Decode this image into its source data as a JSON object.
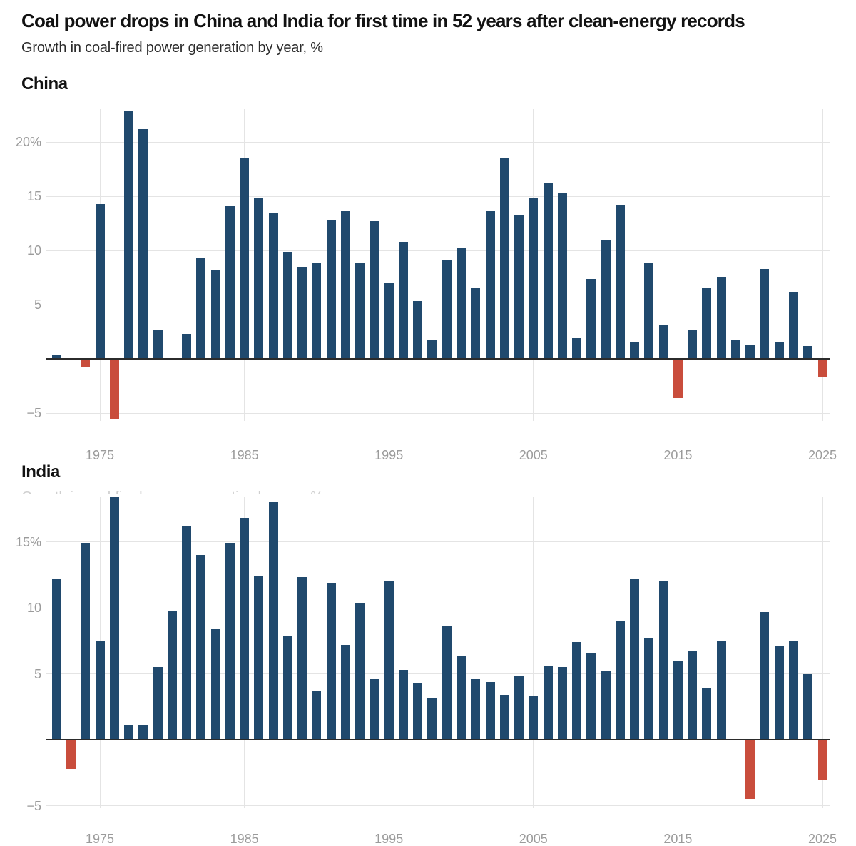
{
  "header": {
    "title": "Coal power drops in China and India for first time in 52 years after clean-energy records",
    "subtitle": "Growth in coal-fired power generation by year, %"
  },
  "artifact": {
    "clipped_subtitle": "Growth in coal-fired power generation by year, %"
  },
  "colors": {
    "bar_positive": "#20496D",
    "bar_negative": "#C94D3C",
    "gridline": "#E4E4E4",
    "axis_line": "#2B2B2B",
    "tick_label": "#9B9B9B"
  },
  "chart_data": [
    {
      "type": "bar",
      "section_label": "China",
      "title": "Coal power drops in China and India for first time in 52 years after clean-energy records",
      "xlabel": "",
      "ylabel": "Growth in coal-fired power generation by year, %",
      "ylim": [
        -6.6,
        23.6
      ],
      "grid": true,
      "legend": "none",
      "x_ticks": [
        "1975",
        "1985",
        "1995",
        "2005",
        "2015",
        "2025"
      ],
      "y_ticks": [
        {
          "value": 20,
          "label": "20%"
        },
        {
          "value": 15,
          "label": "15"
        },
        {
          "value": 10,
          "label": "10"
        },
        {
          "value": 5,
          "label": "5"
        },
        {
          "value": -5,
          "label": "−5"
        }
      ],
      "years": [
        1972,
        1973,
        1974,
        1975,
        1976,
        1977,
        1978,
        1979,
        1980,
        1981,
        1982,
        1983,
        1984,
        1985,
        1986,
        1987,
        1988,
        1989,
        1990,
        1991,
        1992,
        1993,
        1994,
        1995,
        1996,
        1997,
        1998,
        1999,
        2000,
        2001,
        2002,
        2003,
        2004,
        2005,
        2006,
        2007,
        2008,
        2009,
        2010,
        2011,
        2012,
        2013,
        2014,
        2015,
        2016,
        2017,
        2018,
        2019,
        2020,
        2021,
        2022,
        2023,
        2024,
        2025
      ],
      "values": [
        0.4,
        0,
        -0.7,
        14.3,
        -5.6,
        22.8,
        21.2,
        2.6,
        0,
        2.3,
        9.3,
        8.2,
        14.1,
        18.5,
        14.9,
        13.4,
        9.9,
        8.4,
        8.9,
        12.8,
        13.6,
        8.9,
        12.7,
        7.0,
        10.8,
        5.3,
        1.8,
        9.1,
        10.2,
        6.5,
        13.6,
        18.5,
        13.3,
        14.9,
        16.2,
        15.3,
        1.9,
        7.4,
        11.0,
        14.2,
        1.6,
        8.8,
        3.1,
        -3.6,
        2.6,
        6.5,
        7.5,
        1.8,
        1.3,
        8.3,
        1.5,
        6.2,
        1.2,
        -1.7
      ]
    },
    {
      "type": "bar",
      "section_label": "India",
      "title": "Coal power drops in China and India for first time in 52 years after clean-energy records",
      "xlabel": "",
      "ylabel": "Growth in coal-fired power generation by year, %",
      "ylim": [
        -5.4,
        18.6
      ],
      "grid": true,
      "legend": "none",
      "x_ticks": [
        "1975",
        "1985",
        "1995",
        "2005",
        "2015",
        "2025"
      ],
      "y_ticks": [
        {
          "value": 15,
          "label": "15%"
        },
        {
          "value": 10,
          "label": "10"
        },
        {
          "value": 5,
          "label": "5"
        },
        {
          "value": -5,
          "label": "−5"
        }
      ],
      "years": [
        1972,
        1973,
        1974,
        1975,
        1976,
        1977,
        1978,
        1979,
        1980,
        1981,
        1982,
        1983,
        1984,
        1985,
        1986,
        1987,
        1988,
        1989,
        1990,
        1991,
        1992,
        1993,
        1994,
        1995,
        1996,
        1997,
        1998,
        1999,
        2000,
        2001,
        2002,
        2003,
        2004,
        2005,
        2006,
        2007,
        2008,
        2009,
        2010,
        2011,
        2012,
        2013,
        2014,
        2015,
        2016,
        2017,
        2018,
        2019,
        2020,
        2021,
        2022,
        2023,
        2024,
        2025
      ],
      "values": [
        12.2,
        -2.2,
        14.9,
        7.5,
        18.4,
        1.1,
        1.1,
        5.5,
        9.8,
        16.2,
        14.0,
        8.4,
        14.9,
        16.8,
        12.4,
        18.0,
        7.9,
        12.3,
        3.7,
        11.9,
        7.2,
        10.4,
        4.6,
        12.0,
        5.3,
        4.3,
        3.2,
        8.6,
        6.3,
        4.6,
        4.4,
        3.4,
        4.8,
        3.3,
        5.6,
        5.5,
        7.4,
        6.6,
        5.2,
        9.0,
        12.2,
        7.7,
        12.0,
        6.0,
        6.7,
        3.9,
        7.5,
        0,
        -4.5,
        9.7,
        7.1,
        7.5,
        5.0,
        -3.0
      ]
    }
  ]
}
